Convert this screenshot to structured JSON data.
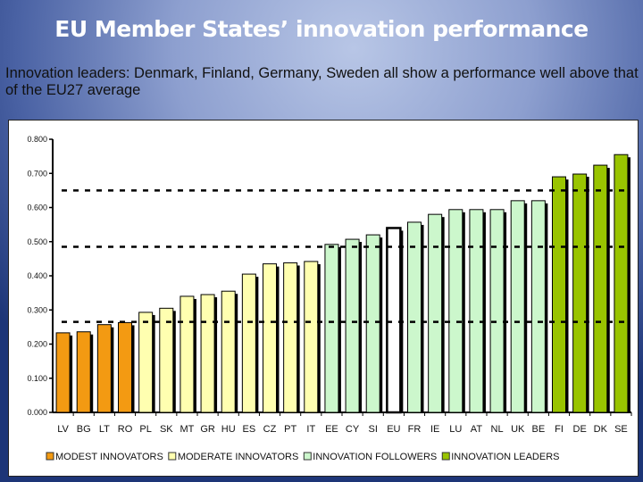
{
  "slide": {
    "title": "EU Member States’ innovation performance",
    "subtitle_bold": "Innovation leaders",
    "subtitle_rest": ": Denmark, Finland, Germany, Sweden all show a performance well above that of the EU27 average"
  },
  "chart_data": {
    "type": "bar",
    "categories": [
      "LV",
      "BG",
      "LT",
      "RO",
      "PL",
      "SK",
      "MT",
      "GR",
      "HU",
      "ES",
      "CZ",
      "PT",
      "IT",
      "EE",
      "CY",
      "SI",
      "EU",
      "FR",
      "IE",
      "LU",
      "AT",
      "NL",
      "UK",
      "BE",
      "FI",
      "DE",
      "DK",
      "SE"
    ],
    "values": [
      0.233,
      0.236,
      0.257,
      0.263,
      0.293,
      0.305,
      0.34,
      0.345,
      0.355,
      0.405,
      0.435,
      0.438,
      0.442,
      0.492,
      0.507,
      0.52,
      0.54,
      0.557,
      0.58,
      0.594,
      0.594,
      0.594,
      0.62,
      0.62,
      0.69,
      0.698,
      0.724,
      0.755
    ],
    "groups": [
      "modest",
      "modest",
      "modest",
      "modest",
      "moderate",
      "moderate",
      "moderate",
      "moderate",
      "moderate",
      "moderate",
      "moderate",
      "moderate",
      "moderate",
      "follower",
      "follower",
      "follower",
      "eu",
      "follower",
      "follower",
      "follower",
      "follower",
      "follower",
      "follower",
      "follower",
      "leader",
      "leader",
      "leader",
      "leader"
    ],
    "ylim": [
      0,
      0.8
    ],
    "yticks": [
      "0.000",
      "0.100",
      "0.200",
      "0.300",
      "0.400",
      "0.500",
      "0.600",
      "0.700",
      "0.800"
    ],
    "thresholds": [
      0.265,
      0.485,
      0.65
    ],
    "grid": false,
    "legend_position": "bottom",
    "legend": [
      {
        "key": "modest",
        "label": "MODEST INNOVATORS",
        "color": "#f39a12"
      },
      {
        "key": "moderate",
        "label": "MODERATE INNOVATORS",
        "color": "#ffffb0"
      },
      {
        "key": "follower",
        "label": "INNOVATION FOLLOWERS",
        "color": "#ccf7cc"
      },
      {
        "key": "leader",
        "label": "INNOVATION LEADERS",
        "color": "#99c400"
      }
    ],
    "eu_color": "#ffffff"
  }
}
